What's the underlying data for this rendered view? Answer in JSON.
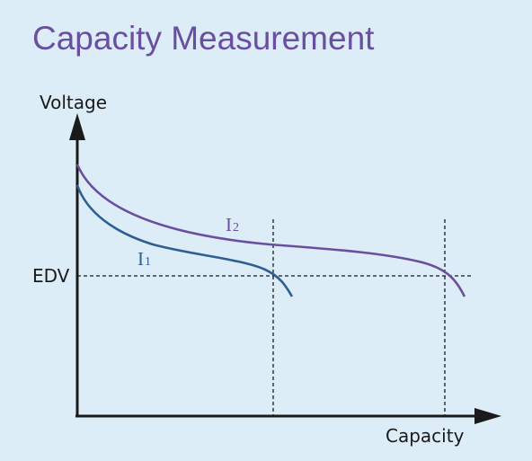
{
  "title": "Capacity Measurement",
  "diagram": {
    "y_axis_label": "Voltage",
    "x_axis_label": "Capacity",
    "edv_label": "EDV",
    "curves": [
      {
        "id": "I1",
        "main": "I",
        "sub": "1",
        "color": "#2d5f94"
      },
      {
        "id": "I2",
        "main": "I",
        "sub": "2",
        "color": "#6a4ea0"
      }
    ],
    "axis_color": "#1a1a1a",
    "dashed_line_color": "#1a1a1a"
  }
}
